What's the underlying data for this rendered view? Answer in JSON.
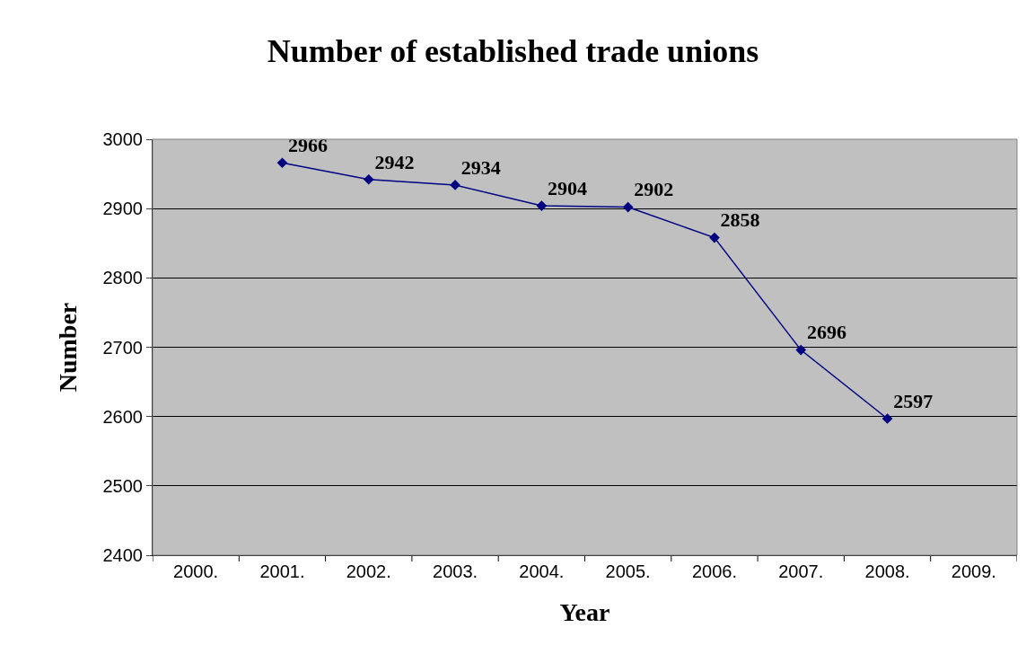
{
  "chart_data": {
    "type": "line",
    "title": "Number of established trade unions",
    "xlabel": "Year",
    "ylabel": "Number",
    "categories": [
      "2000.",
      "2001.",
      "2002.",
      "2003.",
      "2004.",
      "2005.",
      "2006.",
      "2007.",
      "2008.",
      "2009."
    ],
    "series": [
      {
        "color": "#000080",
        "values": [
          null,
          2966,
          2942,
          2934,
          2904,
          2902,
          2858,
          2696,
          2597,
          null
        ]
      }
    ],
    "ylim": [
      2400,
      3000
    ],
    "yticks": [
      2400,
      2500,
      2600,
      2700,
      2800,
      2900,
      3000
    ],
    "grid": "y",
    "legend": false,
    "marker": "diamond",
    "line_style": "solid",
    "data_labels": true
  }
}
